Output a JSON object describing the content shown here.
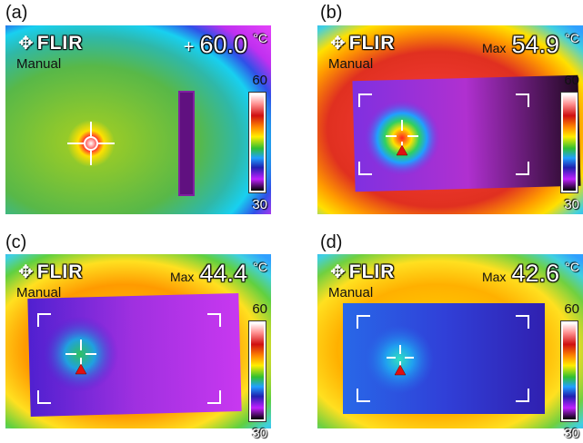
{
  "panels": [
    {
      "id": "a",
      "label": "(a)",
      "logo": "FLIR",
      "mode": "Manual",
      "readout_prefix": "+",
      "readout_value": "60.0",
      "unit": "°C",
      "scale_max": "60",
      "scale_min": "30",
      "icons": [
        "flir-logo-icon",
        "crosshair-icon",
        "colorbar"
      ]
    },
    {
      "id": "b",
      "label": "(b)",
      "logo": "FLIR",
      "mode": "Manual",
      "readout_prefix": "Max",
      "readout_value": "54.9",
      "unit": "°C",
      "scale_max": "60",
      "scale_min": "30",
      "icons": [
        "flir-logo-icon",
        "crosshair-icon",
        "hotspot-triangle-icon",
        "measurement-box",
        "colorbar"
      ]
    },
    {
      "id": "c",
      "label": "(c)",
      "logo": "FLIR",
      "mode": "Manual",
      "readout_prefix": "Max",
      "readout_value": "44.4",
      "unit": "°C",
      "scale_max": "60",
      "scale_min": "30",
      "icons": [
        "flir-logo-icon",
        "crosshair-icon",
        "hotspot-triangle-icon",
        "measurement-box",
        "colorbar"
      ]
    },
    {
      "id": "d",
      "label": "(d)",
      "logo": "FLIR",
      "mode": "Manual",
      "readout_prefix": "Max",
      "readout_value": "42.6",
      "unit": "°C",
      "scale_max": "60",
      "scale_min": "30",
      "icons": [
        "flir-logo-icon",
        "crosshair-icon",
        "hotspot-triangle-icon",
        "measurement-box",
        "colorbar"
      ]
    }
  ],
  "colors": {
    "palette": "iron-rainbow",
    "hot": "#ff2020",
    "warm": "#ffee00",
    "mid": "#20c0ff",
    "cool": "#c020ff",
    "cold": "#000000"
  }
}
